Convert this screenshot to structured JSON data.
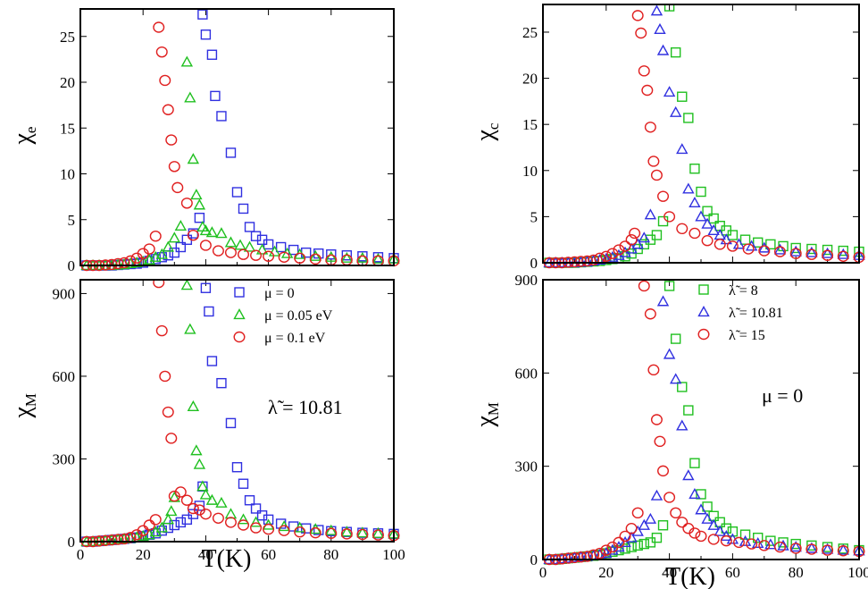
{
  "chart_data": [
    {
      "type": "scatter",
      "panel": "top-left",
      "ylabel": "χ",
      "ylabel_sub": "e",
      "xlabel": "",
      "xlim": [
        0,
        100
      ],
      "ylim": [
        0,
        28
      ],
      "xticks": [
        0,
        20,
        40,
        60,
        80,
        100
      ],
      "yticks": [
        0,
        5,
        10,
        15,
        20,
        25
      ],
      "show_xtick_labels": false,
      "series": [
        {
          "color": "#3030e0",
          "marker": "square",
          "x": [
            2,
            4,
            6,
            8,
            10,
            12,
            14,
            16,
            18,
            20,
            22,
            24,
            26,
            28,
            30,
            32,
            34,
            36,
            38,
            39,
            40,
            42,
            43,
            45,
            48,
            50,
            52,
            54,
            56,
            58,
            60,
            64,
            68,
            72,
            76,
            80,
            85,
            90,
            95,
            100
          ],
          "y": [
            0,
            0,
            0,
            0,
            0,
            0.05,
            0.1,
            0.15,
            0.2,
            0.3,
            0.5,
            0.7,
            0.9,
            1.1,
            1.4,
            2,
            2.8,
            3.5,
            5.2,
            27.4,
            25.2,
            23,
            18.5,
            16.3,
            12.3,
            8,
            6.2,
            4.2,
            3.2,
            2.8,
            2.3,
            2,
            1.7,
            1.4,
            1.3,
            1.2,
            1.1,
            1,
            0.9,
            0.8
          ]
        },
        {
          "color": "#20c020",
          "marker": "triangle",
          "x": [
            2,
            4,
            6,
            8,
            10,
            12,
            14,
            16,
            18,
            20,
            22,
            24,
            26,
            28,
            30,
            32,
            34,
            35,
            36,
            37,
            38,
            39,
            40,
            42,
            45,
            48,
            51,
            54,
            58,
            62,
            66,
            70,
            75,
            80,
            85,
            90,
            95,
            100
          ],
          "y": [
            0,
            0,
            0,
            0,
            0,
            0.05,
            0.1,
            0.2,
            0.3,
            0.4,
            0.6,
            0.9,
            1.2,
            2,
            3,
            4.3,
            22.2,
            18.3,
            11.6,
            7.7,
            6.6,
            4.2,
            3.8,
            3.6,
            3.5,
            2.5,
            2.2,
            2,
            1.7,
            1.5,
            1.3,
            1.2,
            1,
            0.9,
            0.8,
            0.8,
            0.7,
            0.7
          ]
        },
        {
          "color": "#e02020",
          "marker": "circle",
          "x": [
            2,
            4,
            6,
            8,
            10,
            12,
            14,
            16,
            18,
            20,
            22,
            24,
            25,
            26,
            27,
            28,
            29,
            30,
            31,
            34,
            36,
            40,
            44,
            48,
            52,
            56,
            60,
            65,
            70,
            75,
            80,
            85,
            90,
            95,
            100
          ],
          "y": [
            0,
            0,
            0,
            0.05,
            0.1,
            0.2,
            0.3,
            0.5,
            0.8,
            1.3,
            1.8,
            3.2,
            26,
            23.3,
            20.2,
            17,
            13.7,
            10.8,
            8.5,
            6.8,
            3.3,
            2.2,
            1.6,
            1.4,
            1.2,
            1.1,
            1,
            0.9,
            0.8,
            0.7,
            0.6,
            0.6,
            0.5,
            0.5,
            0.5
          ]
        }
      ]
    },
    {
      "type": "scatter",
      "panel": "bottom-left",
      "ylabel": "χ",
      "ylabel_sub": "M",
      "xlabel": "T(K)",
      "xlim": [
        0,
        100
      ],
      "ylim": [
        0,
        950
      ],
      "xticks": [
        0,
        20,
        40,
        60,
        80,
        100
      ],
      "yticks": [
        0,
        300,
        600,
        900
      ],
      "annotation": "λ̃ = 10.81",
      "legend_position": "top-right",
      "series": [
        {
          "name": "μ = 0",
          "color": "#3030e0",
          "marker": "square",
          "x": [
            2,
            4,
            6,
            8,
            10,
            12,
            14,
            16,
            18,
            20,
            22,
            24,
            26,
            28,
            30,
            32,
            34,
            36,
            38,
            39,
            40,
            41,
            42,
            45,
            48,
            50,
            52,
            54,
            56,
            58,
            60,
            64,
            68,
            72,
            76,
            80,
            85,
            90,
            95,
            100
          ],
          "y": [
            0,
            0,
            2,
            4,
            6,
            8,
            10,
            12,
            15,
            20,
            25,
            30,
            40,
            50,
            60,
            70,
            80,
            100,
            130,
            200,
            920,
            835,
            655,
            575,
            430,
            270,
            210,
            150,
            120,
            95,
            80,
            65,
            55,
            48,
            42,
            38,
            35,
            32,
            30,
            28
          ]
        },
        {
          "name": "μ = 0.05 eV",
          "color": "#20c020",
          "marker": "triangle",
          "x": [
            2,
            4,
            6,
            8,
            10,
            12,
            14,
            16,
            18,
            20,
            22,
            24,
            26,
            28,
            29,
            30,
            34,
            35,
            36,
            37,
            38,
            39,
            40,
            42,
            45,
            48,
            52,
            56,
            60,
            65,
            70,
            75,
            80,
            85,
            90,
            95,
            100
          ],
          "y": [
            0,
            0,
            2,
            4,
            6,
            8,
            10,
            12,
            15,
            20,
            25,
            35,
            50,
            80,
            110,
            160,
            930,
            770,
            490,
            330,
            280,
            200,
            170,
            150,
            140,
            100,
            80,
            70,
            60,
            55,
            50,
            45,
            40,
            35,
            32,
            30,
            28
          ]
        },
        {
          "name": "μ = 0.1  eV",
          "color": "#e02020",
          "marker": "circle",
          "x": [
            2,
            4,
            6,
            8,
            10,
            12,
            14,
            16,
            18,
            20,
            22,
            24,
            25,
            26,
            27,
            28,
            29,
            30,
            32,
            34,
            36,
            38,
            40,
            44,
            48,
            52,
            56,
            60,
            65,
            70,
            75,
            80,
            85,
            90,
            95,
            100
          ],
          "y": [
            0,
            0,
            2,
            4,
            6,
            8,
            10,
            15,
            25,
            40,
            60,
            80,
            940,
            765,
            600,
            470,
            375,
            165,
            180,
            150,
            120,
            115,
            100,
            85,
            70,
            60,
            50,
            45,
            40,
            35,
            32,
            30,
            28,
            26,
            24,
            22
          ]
        }
      ]
    },
    {
      "type": "scatter",
      "panel": "top-right",
      "ylabel": "χ",
      "ylabel_sub": "c",
      "xlabel": "",
      "xlim": [
        0,
        100
      ],
      "ylim": [
        0,
        28
      ],
      "xticks": [
        0,
        20,
        40,
        60,
        80,
        100
      ],
      "yticks": [
        0,
        5,
        10,
        15,
        20,
        25
      ],
      "show_xtick_labels": false,
      "series": [
        {
          "color": "#20c020",
          "marker": "square",
          "x": [
            2,
            4,
            6,
            8,
            10,
            12,
            14,
            16,
            18,
            20,
            22,
            24,
            26,
            28,
            30,
            32,
            34,
            36,
            38,
            40,
            42,
            44,
            46,
            48,
            50,
            52,
            54,
            56,
            58,
            60,
            64,
            68,
            72,
            76,
            80,
            85,
            90,
            95,
            100
          ],
          "y": [
            0,
            0,
            0,
            0,
            0,
            0.05,
            0.1,
            0.15,
            0.2,
            0.3,
            0.4,
            0.5,
            0.7,
            1,
            1.5,
            2,
            2.5,
            3,
            4.5,
            27.8,
            22.8,
            18,
            15.7,
            10.2,
            7.7,
            5.6,
            4.8,
            4,
            3.5,
            3,
            2.5,
            2.2,
            2,
            1.8,
            1.6,
            1.5,
            1.4,
            1.3,
            1.2
          ]
        },
        {
          "color": "#3030e0",
          "marker": "triangle",
          "x": [
            2,
            4,
            6,
            8,
            10,
            12,
            14,
            16,
            18,
            20,
            22,
            24,
            26,
            28,
            30,
            32,
            34,
            36,
            37,
            38,
            40,
            42,
            44,
            46,
            48,
            50,
            52,
            54,
            56,
            58,
            62,
            66,
            70,
            75,
            80,
            85,
            90,
            95,
            100
          ],
          "y": [
            0,
            0,
            0,
            0,
            0,
            0.05,
            0.1,
            0.2,
            0.3,
            0.4,
            0.6,
            0.8,
            1.1,
            1.5,
            2,
            2.7,
            5.2,
            27.3,
            25.3,
            23,
            18.5,
            16.3,
            12.3,
            8,
            6.5,
            5,
            4.2,
            3.5,
            3,
            2.5,
            2,
            1.8,
            1.6,
            1.4,
            1.2,
            1.1,
            1,
            0.9,
            0.8
          ]
        },
        {
          "color": "#e02020",
          "marker": "circle",
          "x": [
            2,
            4,
            6,
            8,
            10,
            12,
            14,
            16,
            18,
            20,
            22,
            24,
            26,
            28,
            29,
            30,
            31,
            32,
            33,
            34,
            35,
            36,
            38,
            40,
            44,
            48,
            52,
            56,
            60,
            65,
            70,
            75,
            80,
            85,
            90,
            95,
            100
          ],
          "y": [
            0,
            0,
            0,
            0.05,
            0.1,
            0.15,
            0.2,
            0.3,
            0.5,
            0.7,
            1,
            1.4,
            1.8,
            2.5,
            3.2,
            26.8,
            24.9,
            20.8,
            18.7,
            14.7,
            11,
            9.5,
            7.2,
            5,
            3.7,
            3.2,
            2.4,
            2,
            1.8,
            1.5,
            1.3,
            1.2,
            1,
            0.9,
            0.8,
            0.7,
            0.6
          ]
        }
      ]
    },
    {
      "type": "scatter",
      "panel": "bottom-right",
      "ylabel": "χ",
      "ylabel_sub": "M",
      "xlabel": "T(K)",
      "xlim": [
        0,
        100
      ],
      "ylim": [
        0,
        900
      ],
      "xticks": [
        0,
        20,
        40,
        60,
        80,
        100
      ],
      "yticks": [
        0,
        300,
        600,
        900
      ],
      "annotation": "μ = 0",
      "legend_position": "top-right",
      "series": [
        {
          "name": "λ̃ = 8",
          "color": "#20c020",
          "marker": "square",
          "x": [
            2,
            4,
            6,
            8,
            10,
            12,
            14,
            16,
            18,
            20,
            22,
            24,
            26,
            28,
            30,
            32,
            34,
            36,
            38,
            40,
            42,
            44,
            46,
            48,
            50,
            52,
            54,
            56,
            58,
            60,
            64,
            68,
            72,
            76,
            80,
            85,
            90,
            95,
            100
          ],
          "y": [
            0,
            0,
            2,
            4,
            6,
            8,
            10,
            12,
            15,
            20,
            25,
            30,
            35,
            40,
            45,
            50,
            55,
            70,
            110,
            880,
            710,
            555,
            480,
            310,
            210,
            170,
            140,
            120,
            100,
            90,
            80,
            70,
            60,
            55,
            50,
            45,
            40,
            35,
            30
          ]
        },
        {
          "name": "λ̃ = 10.81",
          "color": "#3030e0",
          "marker": "triangle",
          "x": [
            2,
            4,
            6,
            8,
            10,
            12,
            14,
            16,
            18,
            20,
            22,
            24,
            26,
            28,
            30,
            32,
            34,
            36,
            38,
            40,
            42,
            44,
            46,
            48,
            50,
            52,
            54,
            56,
            58,
            60,
            64,
            68,
            72,
            76,
            80,
            85,
            90,
            95,
            100
          ],
          "y": [
            0,
            0,
            2,
            4,
            6,
            8,
            10,
            12,
            15,
            20,
            30,
            40,
            55,
            70,
            90,
            110,
            130,
            205,
            830,
            660,
            580,
            430,
            270,
            210,
            160,
            130,
            110,
            90,
            75,
            65,
            58,
            52,
            48,
            44,
            40,
            36,
            33,
            30,
            28
          ]
        },
        {
          "name": "λ̃ = 15",
          "color": "#e02020",
          "marker": "circle",
          "x": [
            2,
            4,
            6,
            8,
            10,
            12,
            14,
            16,
            18,
            20,
            22,
            24,
            26,
            28,
            30,
            32,
            34,
            35,
            36,
            37,
            38,
            40,
            42,
            44,
            46,
            48,
            50,
            54,
            58,
            62,
            66,
            70,
            75,
            80,
            85,
            90,
            95,
            100
          ],
          "y": [
            0,
            0,
            2,
            4,
            6,
            8,
            10,
            15,
            20,
            30,
            40,
            55,
            75,
            100,
            150,
            880,
            790,
            610,
            450,
            380,
            285,
            200,
            150,
            120,
            100,
            85,
            75,
            65,
            60,
            55,
            50,
            45,
            40,
            36,
            33,
            30,
            28,
            26
          ]
        }
      ]
    }
  ]
}
